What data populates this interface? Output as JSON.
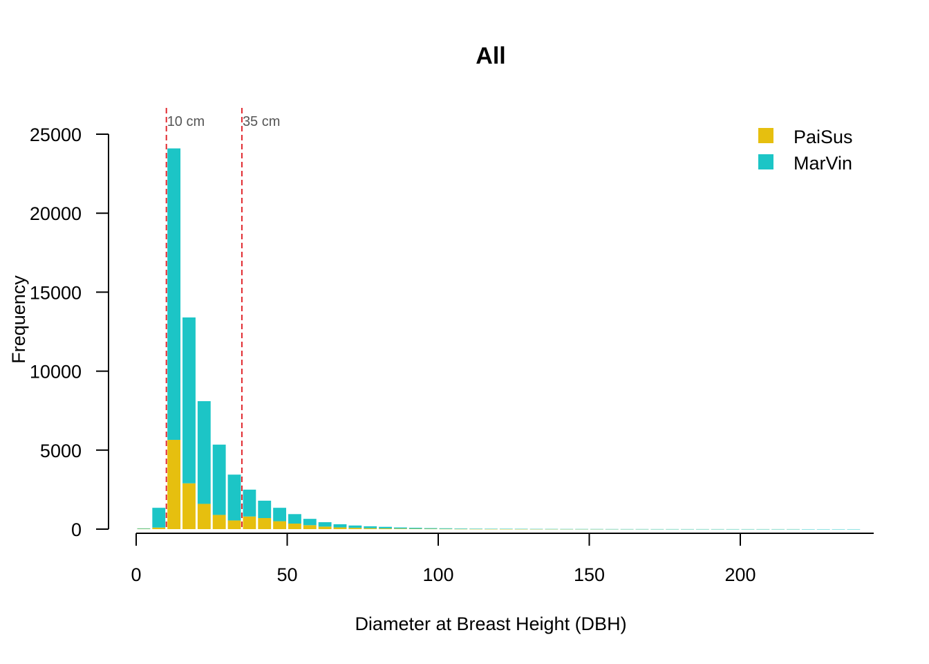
{
  "chart_data": {
    "type": "bar",
    "title": "All",
    "xlabel": "Diameter at Breast Height (DBH)",
    "ylabel": "Frequency",
    "xlim": [
      0,
      240
    ],
    "ylim": [
      0,
      25000
    ],
    "x_ticks": [
      0,
      50,
      100,
      150,
      200
    ],
    "y_ticks": [
      0,
      5000,
      10000,
      15000,
      20000,
      25000
    ],
    "bin_width": 5,
    "stacked": true,
    "bin_starts": [
      0,
      5,
      10,
      15,
      20,
      25,
      30,
      35,
      40,
      45,
      50,
      55,
      60,
      65,
      70,
      75,
      80,
      85,
      90,
      95,
      100,
      105,
      110,
      115,
      120,
      125,
      130,
      135,
      140,
      145,
      150,
      155,
      160,
      165,
      170,
      175,
      180,
      185,
      190,
      195,
      200,
      205,
      210,
      215,
      220,
      225,
      230,
      235
    ],
    "series": [
      {
        "name": "PaiSus",
        "color": "#e6bf0f",
        "values": [
          20,
          100,
          5650,
          2900,
          1600,
          900,
          550,
          800,
          700,
          500,
          350,
          250,
          160,
          110,
          80,
          60,
          45,
          35,
          25,
          20,
          15,
          10,
          8,
          6,
          5,
          4,
          3,
          3,
          2,
          2,
          2,
          1,
          1,
          1,
          1,
          1,
          1,
          1,
          1,
          1,
          1,
          1,
          1,
          1,
          0,
          0,
          0,
          0
        ]
      },
      {
        "name": "MarVin",
        "color": "#1cc5c6",
        "values": [
          30,
          1250,
          18450,
          10500,
          6500,
          4450,
          2900,
          1700,
          1100,
          850,
          600,
          400,
          280,
          200,
          150,
          120,
          100,
          70,
          60,
          45,
          40,
          30,
          25,
          20,
          18,
          15,
          12,
          10,
          9,
          8,
          7,
          6,
          5,
          5,
          4,
          4,
          3,
          3,
          3,
          2,
          2,
          2,
          2,
          2,
          1,
          1,
          1,
          1
        ]
      }
    ],
    "reference_lines": [
      {
        "x": 10,
        "label": "10 cm",
        "color": "#e0282e"
      },
      {
        "x": 35,
        "label": "35 cm",
        "color": "#e0282e"
      }
    ],
    "legend": {
      "placement": "top-right"
    },
    "grid": false
  }
}
